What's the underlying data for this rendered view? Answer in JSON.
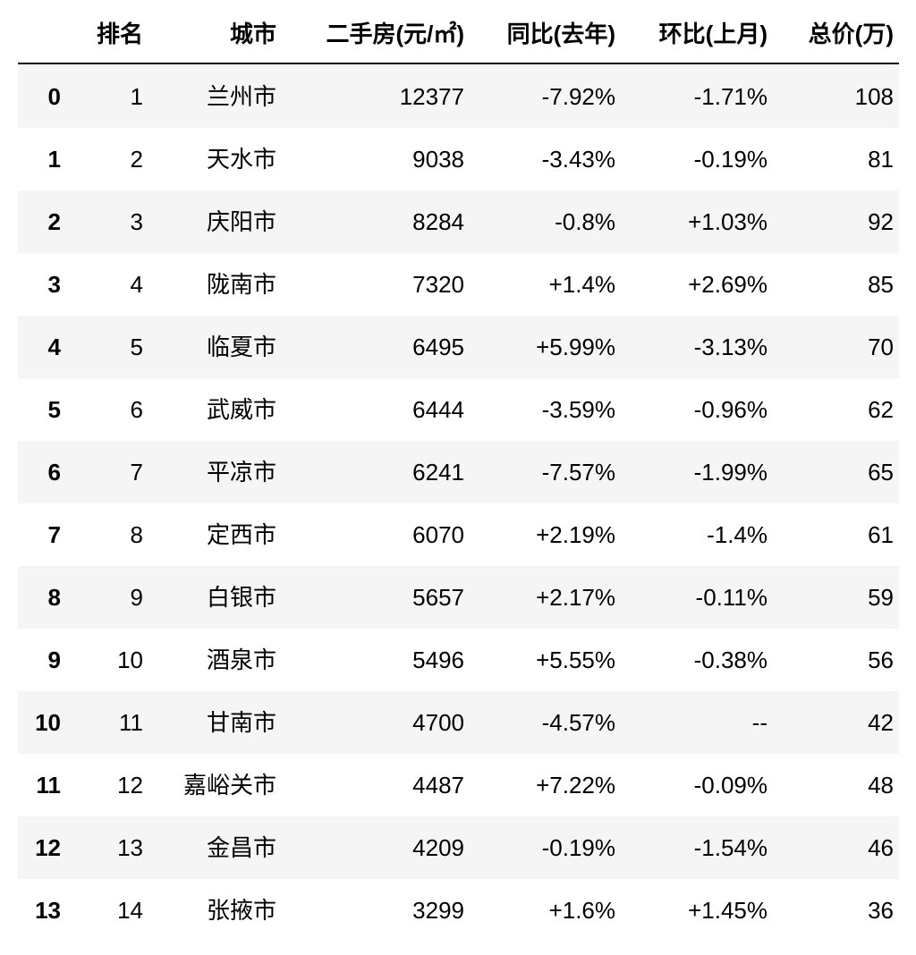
{
  "table": {
    "columns": [
      "排名",
      "城市",
      "二手房(元/㎡)",
      "同比(去年)",
      "环比(上月)",
      "总价(万)"
    ],
    "rows": [
      {
        "index": "0",
        "cells": [
          "1",
          "兰州市",
          "12377",
          "-7.92%",
          "-1.71%",
          "108"
        ]
      },
      {
        "index": "1",
        "cells": [
          "2",
          "天水市",
          "9038",
          "-3.43%",
          "-0.19%",
          "81"
        ]
      },
      {
        "index": "2",
        "cells": [
          "3",
          "庆阳市",
          "8284",
          "-0.8%",
          "+1.03%",
          "92"
        ]
      },
      {
        "index": "3",
        "cells": [
          "4",
          "陇南市",
          "7320",
          "+1.4%",
          "+2.69%",
          "85"
        ]
      },
      {
        "index": "4",
        "cells": [
          "5",
          "临夏市",
          "6495",
          "+5.99%",
          "-3.13%",
          "70"
        ]
      },
      {
        "index": "5",
        "cells": [
          "6",
          "武威市",
          "6444",
          "-3.59%",
          "-0.96%",
          "62"
        ]
      },
      {
        "index": "6",
        "cells": [
          "7",
          "平凉市",
          "6241",
          "-7.57%",
          "-1.99%",
          "65"
        ]
      },
      {
        "index": "7",
        "cells": [
          "8",
          "定西市",
          "6070",
          "+2.19%",
          "-1.4%",
          "61"
        ]
      },
      {
        "index": "8",
        "cells": [
          "9",
          "白银市",
          "5657",
          "+2.17%",
          "-0.11%",
          "59"
        ]
      },
      {
        "index": "9",
        "cells": [
          "10",
          "酒泉市",
          "5496",
          "+5.55%",
          "-0.38%",
          "56"
        ]
      },
      {
        "index": "10",
        "cells": [
          "11",
          "甘南市",
          "4700",
          "-4.57%",
          "--",
          "42"
        ]
      },
      {
        "index": "11",
        "cells": [
          "12",
          "嘉峪关市",
          "4487",
          "+7.22%",
          "-0.09%",
          "48"
        ]
      },
      {
        "index": "12",
        "cells": [
          "13",
          "金昌市",
          "4209",
          "-0.19%",
          "-1.54%",
          "46"
        ]
      },
      {
        "index": "13",
        "cells": [
          "14",
          "张掖市",
          "3299",
          "+1.6%",
          "+1.45%",
          "36"
        ]
      }
    ]
  }
}
